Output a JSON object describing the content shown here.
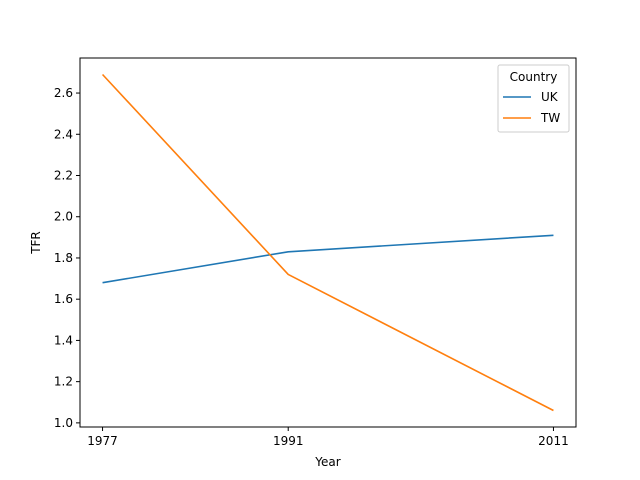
{
  "chart_data": {
    "type": "line",
    "title": "",
    "xlabel": "Year",
    "ylabel": "TFR",
    "x": [
      1977,
      1991,
      2011
    ],
    "x_ticks": [
      "1977",
      "1991",
      "2011"
    ],
    "y_ticks": [
      "1.0",
      "1.2",
      "1.4",
      "1.6",
      "1.8",
      "2.0",
      "2.2",
      "2.4",
      "2.6"
    ],
    "ylim": [
      0.98,
      2.77
    ],
    "xlim": [
      1975.3,
      2012.7
    ],
    "grid": false,
    "legend": {
      "title": "Country",
      "placement": "top-right"
    },
    "series": [
      {
        "name": "UK",
        "color": "#1f77b4",
        "values": [
          1.68,
          1.83,
          1.91
        ]
      },
      {
        "name": "TW",
        "color": "#ff7f0e",
        "values": [
          2.69,
          1.72,
          1.06
        ]
      }
    ]
  }
}
